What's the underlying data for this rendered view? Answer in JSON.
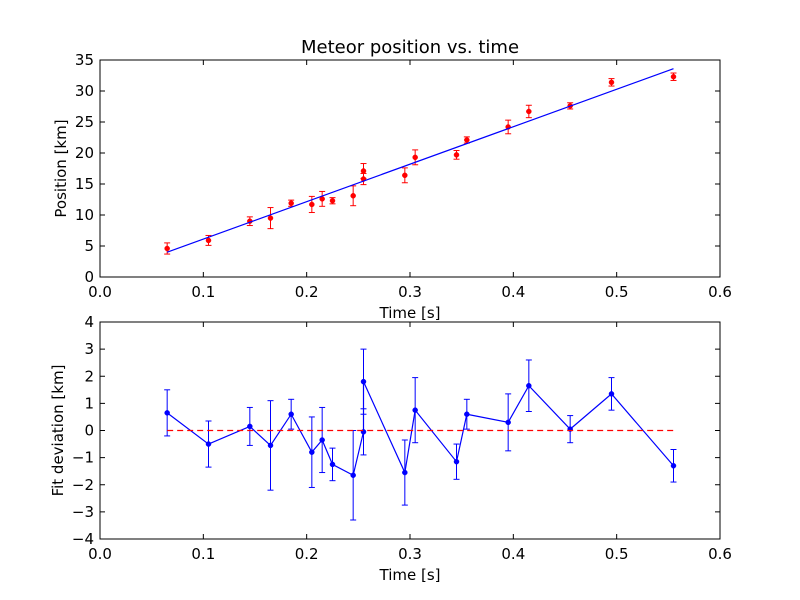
{
  "chart_data": [
    {
      "type": "scatter",
      "title": "Meteor position vs. time",
      "xlabel": "Time [s]",
      "ylabel": "Position [km]",
      "xlim": [
        0.0,
        0.6
      ],
      "ylim": [
        0,
        35
      ],
      "xticks": [
        "0.0",
        "0.1",
        "0.2",
        "0.3",
        "0.4",
        "0.5",
        "0.6"
      ],
      "yticks": [
        "0",
        "5",
        "10",
        "15",
        "20",
        "25",
        "30",
        "35"
      ],
      "grid": false,
      "legend": "none",
      "series": [
        {
          "kind": "errorbar-points",
          "color": "#ff0000",
          "x": [
            0.065,
            0.105,
            0.145,
            0.165,
            0.185,
            0.205,
            0.215,
            0.225,
            0.245,
            0.255,
            0.255,
            0.295,
            0.305,
            0.345,
            0.355,
            0.395,
            0.415,
            0.455,
            0.495,
            0.555
          ],
          "y": [
            4.6,
            5.9,
            9.0,
            9.5,
            11.9,
            11.7,
            12.6,
            12.3,
            13.1,
            15.8,
            17.1,
            16.4,
            19.3,
            19.7,
            22.1,
            24.2,
            26.7,
            27.6,
            31.4,
            32.3
          ],
          "yerr": [
            0.9,
            0.8,
            0.7,
            1.7,
            0.5,
            1.3,
            1.2,
            0.5,
            1.6,
            0.9,
            1.2,
            1.2,
            1.2,
            0.7,
            0.5,
            1.1,
            1.0,
            0.5,
            0.6,
            0.6
          ]
        },
        {
          "kind": "fit-line",
          "color": "#0000ff",
          "x": [
            0.065,
            0.555
          ],
          "y": [
            4.0,
            33.6
          ]
        }
      ]
    },
    {
      "type": "line",
      "xlabel": "Time [s]",
      "ylabel": "Fit deviation [km]",
      "xlim": [
        0.0,
        0.6
      ],
      "ylim": [
        -4,
        4
      ],
      "xticks": [
        "0.0",
        "0.1",
        "0.2",
        "0.3",
        "0.4",
        "0.5",
        "0.6"
      ],
      "yticks": [
        "−4",
        "−3",
        "−2",
        "−1",
        "0",
        "1",
        "2",
        "3",
        "4"
      ],
      "grid": false,
      "legend": "none",
      "series": [
        {
          "kind": "errorbar-line",
          "color": "#0000ff",
          "x": [
            0.065,
            0.105,
            0.145,
            0.165,
            0.185,
            0.205,
            0.215,
            0.225,
            0.245,
            0.255,
            0.255,
            0.295,
            0.305,
            0.345,
            0.355,
            0.395,
            0.415,
            0.455,
            0.495,
            0.555
          ],
          "y": [
            0.65,
            -0.5,
            0.15,
            -0.55,
            0.6,
            -0.8,
            -0.35,
            -1.25,
            -1.65,
            -0.05,
            1.8,
            -1.55,
            0.75,
            -1.15,
            0.6,
            0.3,
            1.65,
            0.05,
            1.35,
            -1.3
          ],
          "yerr": [
            0.85,
            0.85,
            0.7,
            1.65,
            0.55,
            1.3,
            1.2,
            0.6,
            1.65,
            0.85,
            1.2,
            1.2,
            1.2,
            0.65,
            0.55,
            1.05,
            0.95,
            0.5,
            0.6,
            0.6
          ]
        },
        {
          "kind": "zero-line",
          "color": "#ff0000",
          "style": "dashed",
          "x": [
            0.065,
            0.555
          ],
          "y": [
            0,
            0
          ]
        }
      ]
    }
  ]
}
